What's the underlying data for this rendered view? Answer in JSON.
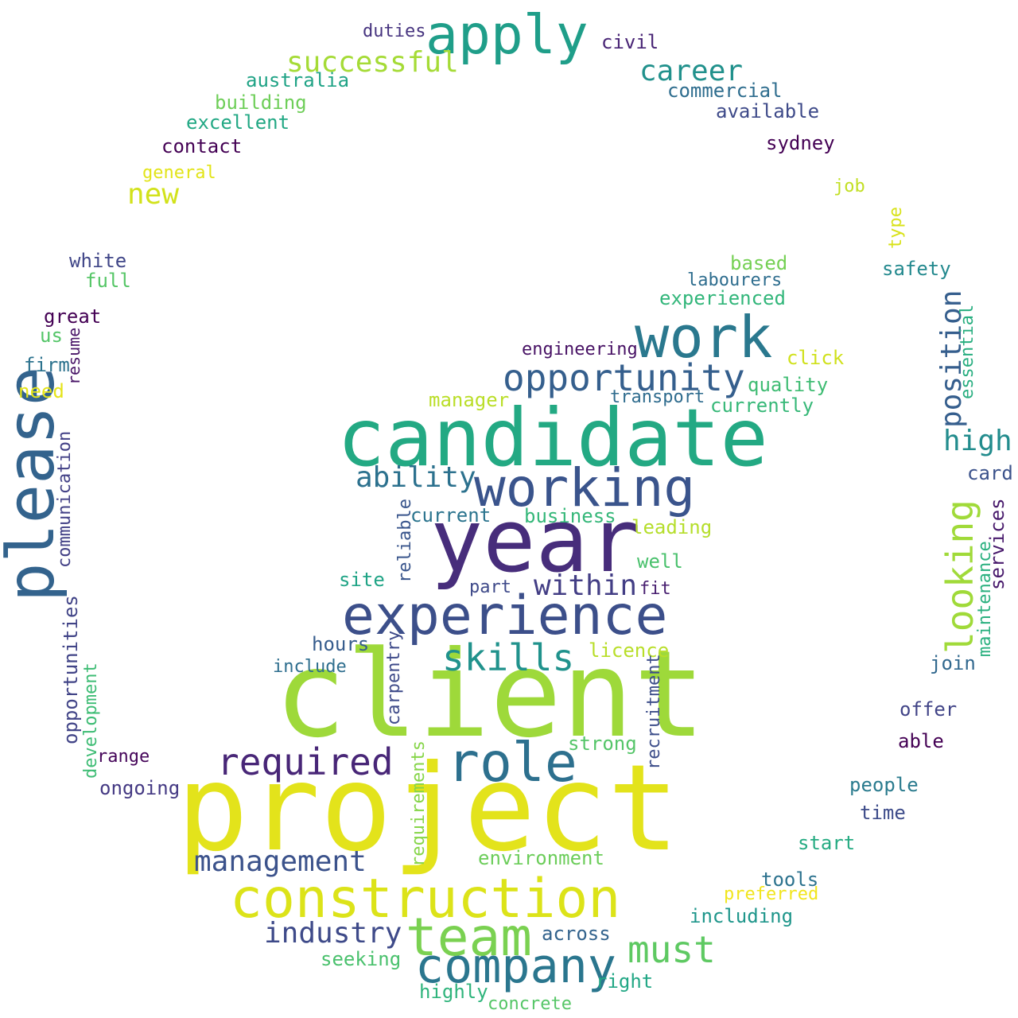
{
  "words": [
    {
      "text": "client",
      "color": "#9ed93a"
    },
    {
      "text": "project",
      "color": "#e3e31b"
    },
    {
      "text": "candidate",
      "color": "#23a983"
    },
    {
      "text": "year",
      "color": "#472d7b"
    },
    {
      "text": "experience",
      "color": "#3c4f8a"
    },
    {
      "text": "work",
      "color": "#2a788e"
    },
    {
      "text": "please",
      "color": "#33638d"
    },
    {
      "text": "working",
      "color": "#3a548c"
    },
    {
      "text": "construction",
      "color": "#dce319"
    },
    {
      "text": "company",
      "color": "#2a768e"
    },
    {
      "text": "role",
      "color": "#2d708e"
    },
    {
      "text": "apply",
      "color": "#1f9e89"
    },
    {
      "text": "team",
      "color": "#7ad151"
    },
    {
      "text": "opportunity",
      "color": "#355f8d"
    },
    {
      "text": "required",
      "color": "#482677"
    },
    {
      "text": "skills",
      "color": "#20928c"
    },
    {
      "text": "looking",
      "color": "#a0da39"
    },
    {
      "text": "must",
      "color": "#5ec962"
    },
    {
      "text": "management",
      "color": "#3b528b"
    },
    {
      "text": "industry",
      "color": "#3e4a89"
    },
    {
      "text": "position",
      "color": "#355e8d"
    },
    {
      "text": "ability",
      "color": "#2c718e"
    },
    {
      "text": "within",
      "color": "#433e85"
    },
    {
      "text": "successful",
      "color": "#a5db36"
    },
    {
      "text": "career",
      "color": "#21918c"
    },
    {
      "text": "high",
      "color": "#228c8d"
    },
    {
      "text": "new",
      "color": "#d2e21b"
    },
    {
      "text": "current",
      "color": "#2b748e"
    },
    {
      "text": "business",
      "color": "#35b779"
    },
    {
      "text": "leading",
      "color": "#b5de2b"
    },
    {
      "text": "well",
      "color": "#4ac16d"
    },
    {
      "text": "site",
      "color": "#20a486"
    },
    {
      "text": "part",
      "color": "#3e4989"
    },
    {
      "text": "fit",
      "color": "#481f70"
    },
    {
      "text": "hours",
      "color": "#365c8d"
    },
    {
      "text": "include",
      "color": "#2e6e8e"
    },
    {
      "text": "licence",
      "color": "#b8de29"
    },
    {
      "text": "strong",
      "color": "#54c568"
    },
    {
      "text": "range",
      "color": "#450559"
    },
    {
      "text": "ongoing",
      "color": "#443983"
    },
    {
      "text": "environment",
      "color": "#6ccd5a"
    },
    {
      "text": "seeking",
      "color": "#4ac16d"
    },
    {
      "text": "across",
      "color": "#33638d"
    },
    {
      "text": "right",
      "color": "#22a785"
    },
    {
      "text": "highly",
      "color": "#2fb47c"
    },
    {
      "text": "concrete",
      "color": "#56c667"
    },
    {
      "text": "tools",
      "color": "#2c728e"
    },
    {
      "text": "preferred",
      "color": "#f1e51d"
    },
    {
      "text": "including",
      "color": "#1f968b"
    },
    {
      "text": "start",
      "color": "#25ab82"
    },
    {
      "text": "time",
      "color": "#3e4c8a"
    },
    {
      "text": "people",
      "color": "#2a7b8e"
    },
    {
      "text": "able",
      "color": "#440154"
    },
    {
      "text": "offer",
      "color": "#414487"
    },
    {
      "text": "join",
      "color": "#31688e"
    },
    {
      "text": "card",
      "color": "#3b528b"
    },
    {
      "text": "services",
      "color": "#481a6c"
    },
    {
      "text": "maintenance",
      "color": "#2ab07f"
    },
    {
      "text": "essential",
      "color": "#28ae80"
    },
    {
      "text": "safety",
      "color": "#23898e"
    },
    {
      "text": "type",
      "color": "#d8e219"
    },
    {
      "text": "job",
      "color": "#c2df23"
    },
    {
      "text": "sydney",
      "color": "#440154"
    },
    {
      "text": "available",
      "color": "#3e4a89"
    },
    {
      "text": "commercial",
      "color": "#2e6d8e"
    },
    {
      "text": "civil",
      "color": "#482475"
    },
    {
      "text": "duties",
      "color": "#46337f"
    },
    {
      "text": "australia",
      "color": "#20a386"
    },
    {
      "text": "building",
      "color": "#6ece58"
    },
    {
      "text": "excellent",
      "color": "#22a884"
    },
    {
      "text": "contact",
      "color": "#440154"
    },
    {
      "text": "general",
      "color": "#e2e418"
    },
    {
      "text": "white",
      "color": "#404688"
    },
    {
      "text": "full",
      "color": "#56c667"
    },
    {
      "text": "great",
      "color": "#440154"
    },
    {
      "text": "us",
      "color": "#54c568"
    },
    {
      "text": "resume",
      "color": "#481467"
    },
    {
      "text": "firm",
      "color": "#2c728e"
    },
    {
      "text": "need",
      "color": "#e5e419"
    },
    {
      "text": "communication",
      "color": "#424086"
    },
    {
      "text": "opportunities",
      "color": "#414487"
    },
    {
      "text": "development",
      "color": "#3dbc74"
    },
    {
      "text": "reliable",
      "color": "#39558c"
    },
    {
      "text": "carpentry",
      "color": "#3e4a89"
    },
    {
      "text": "requirements",
      "color": "#86d549"
    },
    {
      "text": "recruitment",
      "color": "#3d4e8a"
    },
    {
      "text": "engineering",
      "color": "#471164"
    },
    {
      "text": "manager",
      "color": "#bade28"
    },
    {
      "text": "transport",
      "color": "#2f6c8e"
    },
    {
      "text": "currently",
      "color": "#37b878"
    },
    {
      "text": "quality",
      "color": "#3fbc73"
    },
    {
      "text": "click",
      "color": "#d0e11c"
    },
    {
      "text": "experienced",
      "color": "#32b67a"
    },
    {
      "text": "labourers",
      "color": "#2e6d8e"
    },
    {
      "text": "based",
      "color": "#75d054"
    }
  ]
}
